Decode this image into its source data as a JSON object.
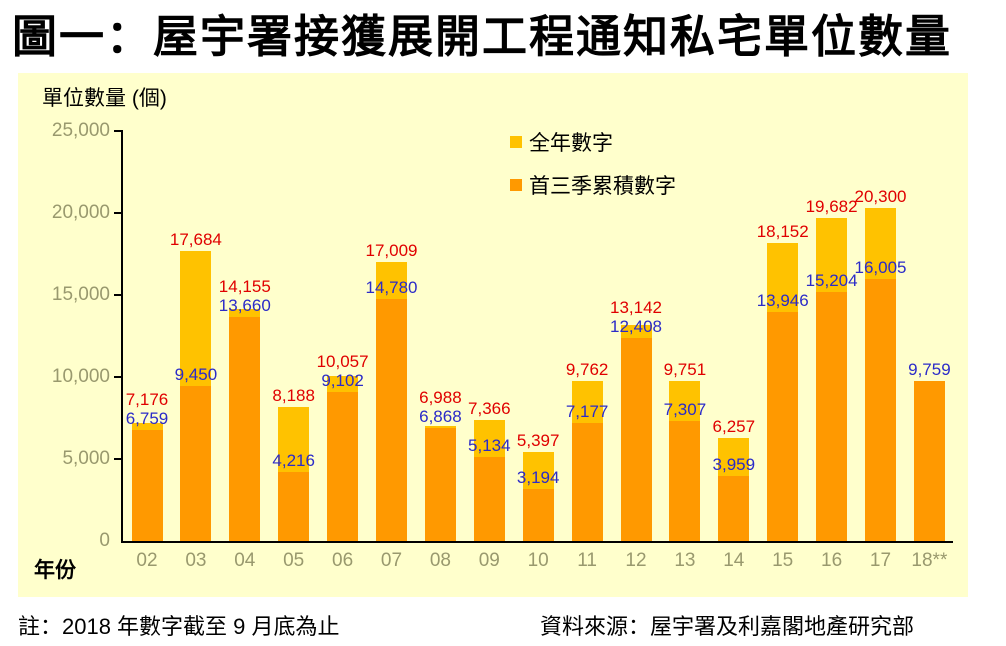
{
  "notes": {
    "left": "註：2018 年數字截至 9 月底為止",
    "right": "資料來源：屋宇署及利嘉閣地產研究部"
  },
  "chart_data": {
    "type": "bar",
    "title": "圖一：屋宇署接獲展開工程通知私宅單位數量",
    "ylabel": "單位數量 (個)",
    "xlabel": "年份",
    "ylim": [
      0,
      25000
    ],
    "ytick_step": 5000,
    "ytick_labels": [
      "0",
      "5,000",
      "10,000",
      "15,000",
      "20,000",
      "25,000"
    ],
    "grid": false,
    "legend_position": "inside-top-center",
    "plot_background": "#FFFFCC",
    "categories": [
      "02",
      "03",
      "04",
      "05",
      "06",
      "07",
      "08",
      "09",
      "10",
      "11",
      "12",
      "13",
      "14",
      "15",
      "16",
      "17",
      "18**"
    ],
    "series": [
      {
        "name": "全年數字",
        "color": "#FFC200",
        "label_color": "#E00000",
        "values": [
          7176,
          17684,
          14155,
          8188,
          10057,
          17009,
          6988,
          7366,
          5397,
          9762,
          13142,
          9751,
          6257,
          18152,
          19682,
          20300,
          null
        ]
      },
      {
        "name": "首三季累積數字",
        "color": "#FF9900",
        "label_color": "#2B2BC8",
        "values": [
          6759,
          9450,
          13660,
          4216,
          9102,
          14780,
          6868,
          5134,
          3194,
          7177,
          12408,
          7307,
          3959,
          13946,
          15204,
          16005,
          9759
        ]
      }
    ]
  }
}
